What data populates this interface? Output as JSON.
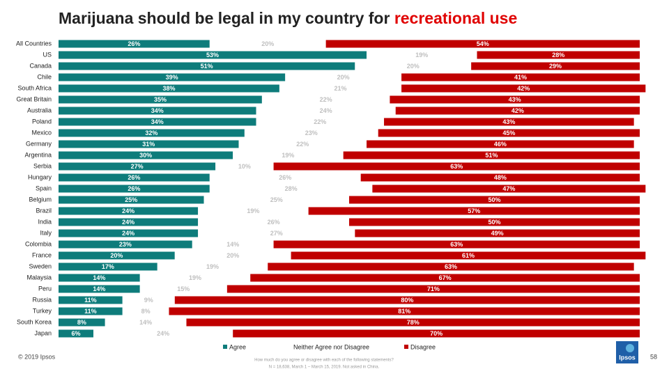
{
  "chart_data": {
    "type": "stacked-bar-horizontal",
    "title": "Marijuana should be legal in my country for",
    "title_highlight": "recreational use",
    "categories": [
      "All Countries",
      "US",
      "Canada",
      "Chile",
      "South Africa",
      "Great Britain",
      "Australia",
      "Poland",
      "Mexico",
      "Germany",
      "Argentina",
      "Serbia",
      "Hungary",
      "Spain",
      "Belgium",
      "Brazil",
      "India",
      "Italy",
      "Colombia",
      "France",
      "Sweden",
      "Malaysia",
      "Peru",
      "Russia",
      "Turkey",
      "South Korea",
      "Japan"
    ],
    "xlim": [
      0,
      100
    ],
    "series": [
      {
        "name": "Agree",
        "color": "#0e7c7b",
        "label_color": "#ffffff",
        "values": [
          26,
          53,
          51,
          39,
          38,
          35,
          34,
          34,
          32,
          31,
          30,
          27,
          26,
          26,
          25,
          24,
          24,
          24,
          23,
          20,
          17,
          14,
          14,
          11,
          11,
          8,
          6
        ],
        "value_labels": [
          "26%",
          "53%",
          "51%",
          "39%",
          "38%",
          "35%",
          "34%",
          "34%",
          "32%",
          "31%",
          "30%",
          "27%",
          "26%",
          "26%",
          "25%",
          "24%",
          "24%",
          "24%",
          "23%",
          "20%",
          "17%",
          "14%",
          "14%",
          "11%",
          "11%",
          "8%",
          "6%"
        ]
      },
      {
        "name": "Neither Agree nor Disagree",
        "color": "#ffffff",
        "label_color": "#bfbfbf",
        "values": [
          20,
          19,
          20,
          20,
          21,
          22,
          24,
          22,
          23,
          22,
          19,
          10,
          26,
          28,
          25,
          19,
          26,
          27,
          14,
          20,
          19,
          19,
          15,
          9,
          8,
          14,
          24
        ],
        "value_labels": [
          "20%",
          "19%",
          "20%",
          "20%",
          "21%",
          "22%",
          "24%",
          "22%",
          "23%",
          "22%",
          "19%",
          "10%",
          "26%",
          "28%",
          "25%",
          "19%",
          "26%",
          "27%",
          "14%",
          "20%",
          "19%",
          "19%",
          "15%",
          "9%",
          "8%",
          "14%",
          "24%"
        ]
      },
      {
        "name": "Disagree",
        "color": "#c00000",
        "label_color": "#ffffff",
        "values": [
          54,
          28,
          29,
          41,
          42,
          43,
          42,
          43,
          45,
          46,
          51,
          63,
          48,
          47,
          50,
          57,
          50,
          49,
          63,
          61,
          63,
          67,
          71,
          80,
          81,
          78,
          70
        ],
        "value_labels": [
          "54%",
          "28%",
          "29%",
          "41%",
          "42%",
          "43%",
          "42%",
          "43%",
          "45%",
          "46%",
          "51%",
          "63%",
          "48%",
          "47%",
          "50%",
          "57%",
          "50%",
          "49%",
          "63%",
          "61%",
          "63%",
          "67%",
          "71%",
          "80%",
          "81%",
          "78%",
          "70%"
        ]
      }
    ]
  },
  "footer": {
    "copyright": "© 2019 Ipsos",
    "question": "How much do you agree or disagree with each of the following statements?",
    "sample": "N = 18,638, March 1 – March 15, 2019. Not asked in China.",
    "page_number": "58",
    "logo": "Ipsos"
  }
}
